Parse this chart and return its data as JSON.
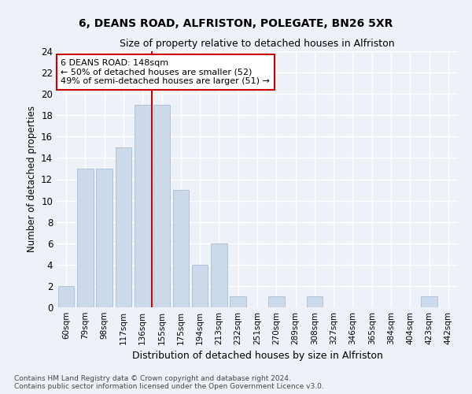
{
  "title1": "6, DEANS ROAD, ALFRISTON, POLEGATE, BN26 5XR",
  "title2": "Size of property relative to detached houses in Alfriston",
  "xlabel": "Distribution of detached houses by size in Alfriston",
  "ylabel": "Number of detached properties",
  "bar_labels": [
    "60sqm",
    "79sqm",
    "98sqm",
    "117sqm",
    "136sqm",
    "155sqm",
    "175sqm",
    "194sqm",
    "213sqm",
    "232sqm",
    "251sqm",
    "270sqm",
    "289sqm",
    "308sqm",
    "327sqm",
    "346sqm",
    "365sqm",
    "384sqm",
    "404sqm",
    "423sqm",
    "442sqm"
  ],
  "bar_values": [
    2,
    13,
    13,
    15,
    19,
    19,
    11,
    4,
    6,
    1,
    0,
    1,
    0,
    1,
    0,
    0,
    0,
    0,
    0,
    1,
    0
  ],
  "bar_color": "#ccd9ea",
  "bar_edgecolor": "#a8bdd4",
  "vline_x": 4.5,
  "vline_color": "#cc0000",
  "annotation_text": "6 DEANS ROAD: 148sqm\n← 50% of detached houses are smaller (52)\n49% of semi-detached houses are larger (51) →",
  "annotation_box_facecolor": "#ffffff",
  "annotation_box_edgecolor": "#cc0000",
  "ylim": [
    0,
    24
  ],
  "yticks": [
    0,
    2,
    4,
    6,
    8,
    10,
    12,
    14,
    16,
    18,
    20,
    22,
    24
  ],
  "footer": "Contains HM Land Registry data © Crown copyright and database right 2024.\nContains public sector information licensed under the Open Government Licence v3.0.",
  "bg_color": "#eef2f8",
  "grid_color": "#ffffff"
}
